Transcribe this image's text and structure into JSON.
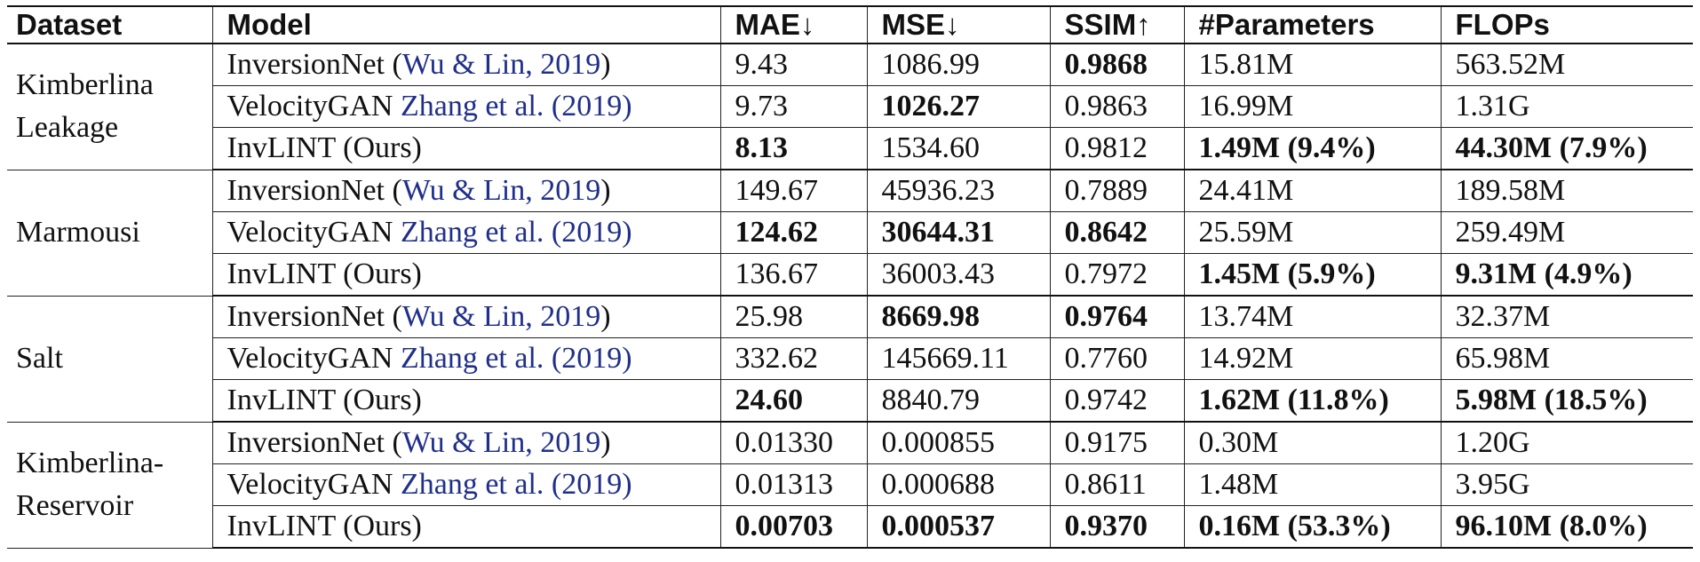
{
  "headers": [
    "Dataset",
    "Model",
    "MAE↓",
    "MSE↓",
    "SSIM↑",
    "#Parameters",
    "FLOPs"
  ],
  "groups": [
    {
      "dataset_lines": [
        "Kimberlina",
        "Leakage"
      ],
      "rows": [
        {
          "model": "InversionNet",
          "mpre": " (",
          "mcite": "Wu & Lin, 2019",
          "mpost": ")",
          "mae": "9.43",
          "mse": "1086.99",
          "ssim": "0.9868",
          "params": "15.81M",
          "flops": "563.52M",
          "bold": [
            "ssim"
          ]
        },
        {
          "model": "VelocityGAN",
          "mpre": " ",
          "mcite": "Zhang et al. (2019)",
          "mpost": "",
          "mae": "9.73",
          "mse": "1026.27",
          "ssim": "0.9863",
          "params": "16.99M",
          "flops": "1.31G",
          "bold": [
            "mse"
          ]
        },
        {
          "model": "InvLINT (Ours)",
          "mpre": "",
          "mcite": "",
          "mpost": "",
          "mae": "8.13",
          "mse": "1534.60",
          "ssim": "0.9812",
          "params": "1.49M (9.4%)",
          "flops": "44.30M (7.9%)",
          "bold": [
            "mae",
            "params",
            "flops"
          ]
        }
      ]
    },
    {
      "dataset_lines": [
        "Marmousi"
      ],
      "rows": [
        {
          "model": "InversionNet",
          "mpre": " (",
          "mcite": "Wu & Lin, 2019",
          "mpost": ")",
          "mae": "149.67",
          "mse": "45936.23",
          "ssim": "0.7889",
          "params": "24.41M",
          "flops": "189.58M",
          "bold": []
        },
        {
          "model": "VelocityGAN",
          "mpre": " ",
          "mcite": "Zhang et al. (2019)",
          "mpost": "",
          "mae": "124.62",
          "mse": "30644.31",
          "ssim": "0.8642",
          "params": "25.59M",
          "flops": "259.49M",
          "bold": [
            "mae",
            "mse",
            "ssim"
          ]
        },
        {
          "model": "InvLINT (Ours)",
          "mpre": "",
          "mcite": "",
          "mpost": "",
          "mae": "136.67",
          "mse": "36003.43",
          "ssim": "0.7972",
          "params": "1.45M (5.9%)",
          "flops": "9.31M (4.9%)",
          "bold": [
            "params",
            "flops"
          ]
        }
      ]
    },
    {
      "dataset_lines": [
        "Salt"
      ],
      "rows": [
        {
          "model": "InversionNet",
          "mpre": " (",
          "mcite": "Wu & Lin, 2019",
          "mpost": ")",
          "mae": "25.98",
          "mse": "8669.98",
          "ssim": "0.9764",
          "params": "13.74M",
          "flops": "32.37M",
          "bold": [
            "mse",
            "ssim"
          ]
        },
        {
          "model": "VelocityGAN",
          "mpre": " ",
          "mcite": "Zhang et al. (2019)",
          "mpost": "",
          "mae": "332.62",
          "mse": "145669.11",
          "ssim": "0.7760",
          "params": "14.92M",
          "flops": "65.98M",
          "bold": []
        },
        {
          "model": "InvLINT (Ours)",
          "mpre": "",
          "mcite": "",
          "mpost": "",
          "mae": "24.60",
          "mse": "8840.79",
          "ssim": "0.9742",
          "params": "1.62M (11.8%)",
          "flops": "5.98M (18.5%)",
          "bold": [
            "mae",
            "params",
            "flops"
          ]
        }
      ]
    },
    {
      "dataset_lines": [
        "Kimberlina-",
        "Reservoir"
      ],
      "rows": [
        {
          "model": "InversionNet",
          "mpre": " (",
          "mcite": "Wu & Lin, 2019",
          "mpost": ")",
          "mae": "0.01330",
          "mse": "0.000855",
          "ssim": "0.9175",
          "params": "0.30M",
          "flops": "1.20G",
          "bold": []
        },
        {
          "model": "VelocityGAN",
          "mpre": " ",
          "mcite": "Zhang et al. (2019)",
          "mpost": "",
          "mae": "0.01313",
          "mse": "0.000688",
          "ssim": "0.8611",
          "params": "1.48M",
          "flops": "3.95G",
          "bold": []
        },
        {
          "model": "InvLINT (Ours)",
          "mpre": "",
          "mcite": "",
          "mpost": "",
          "mae": "0.00703",
          "mse": "0.000537",
          "ssim": "0.9370",
          "params": "0.16M (53.3%)",
          "flops": "96.10M (8.0%)",
          "bold": [
            "mae",
            "mse",
            "ssim",
            "params",
            "flops"
          ]
        }
      ]
    }
  ],
  "citation_color": "#1f2f8a"
}
